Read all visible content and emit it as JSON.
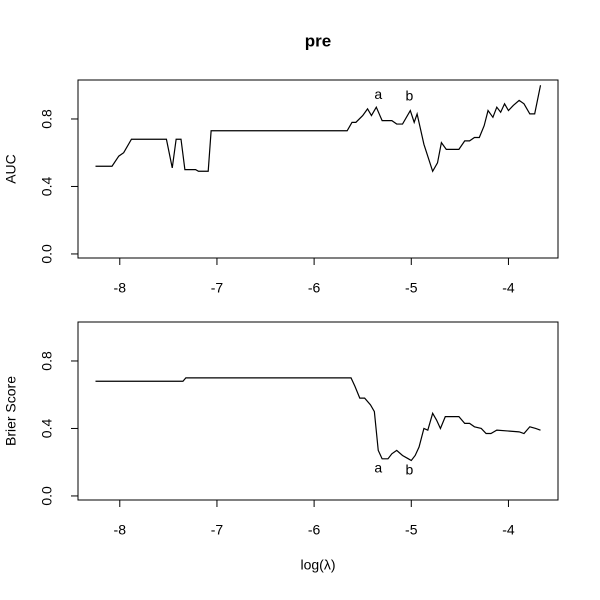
{
  "chart_data": [
    {
      "type": "line",
      "title": "pre",
      "y_label": "AUC",
      "color": "#000000",
      "x": [
        -8.25,
        -8.08,
        -8.01,
        -7.96,
        -7.88,
        -7.52,
        -7.46,
        -7.42,
        -7.37,
        -7.33,
        -7.22,
        -7.19,
        -7.09,
        -7.06,
        -5.66,
        -5.61,
        -5.57,
        -5.5,
        -5.45,
        -5.41,
        -5.36,
        -5.3,
        -5.2,
        -5.15,
        -5.09,
        -5.01,
        -4.97,
        -4.94,
        -4.87,
        -4.78,
        -4.73,
        -4.69,
        -4.64,
        -4.51,
        -4.45,
        -4.4,
        -4.35,
        -4.3,
        -4.25,
        -4.21,
        -4.16,
        -4.12,
        -4.08,
        -4.04,
        -4.0,
        -3.95,
        -3.89,
        -3.84,
        -3.78,
        -3.73,
        -3.67
      ],
      "values": [
        0.52,
        0.52,
        0.58,
        0.6,
        0.68,
        0.68,
        0.51,
        0.68,
        0.68,
        0.5,
        0.5,
        0.49,
        0.49,
        0.73,
        0.73,
        0.78,
        0.78,
        0.82,
        0.86,
        0.82,
        0.87,
        0.79,
        0.79,
        0.77,
        0.77,
        0.85,
        0.78,
        0.83,
        0.65,
        0.49,
        0.54,
        0.66,
        0.62,
        0.62,
        0.67,
        0.67,
        0.69,
        0.69,
        0.76,
        0.85,
        0.81,
        0.87,
        0.84,
        0.89,
        0.85,
        0.88,
        0.91,
        0.89,
        0.83,
        0.83,
        1.0
      ],
      "annotations": [
        {
          "text": "a",
          "x": -5.34,
          "y": 0.94
        },
        {
          "text": "b",
          "x": -5.02,
          "y": 0.93
        }
      ],
      "xlim": [
        -8.43,
        -3.49
      ],
      "ylim": [
        -0.024,
        1.031
      ],
      "xticks": [
        -8,
        -7,
        -6,
        -5,
        -4
      ],
      "yticks": [
        {
          "value": 0,
          "label": "0.0"
        },
        0.4,
        0.8
      ]
    },
    {
      "type": "line",
      "y_label": "Brier Score",
      "x_label": "log(λ)",
      "color": "#000000",
      "x": [
        -8.25,
        -7.35,
        -7.32,
        -5.62,
        -5.58,
        -5.53,
        -5.48,
        -5.42,
        -5.38,
        -5.34,
        -5.3,
        -5.24,
        -5.2,
        -5.15,
        -5.09,
        -5.03,
        -5.0,
        -4.96,
        -4.92,
        -4.87,
        -4.83,
        -4.78,
        -4.74,
        -4.7,
        -4.65,
        -4.51,
        -4.45,
        -4.4,
        -4.35,
        -4.28,
        -4.23,
        -4.18,
        -4.12,
        -3.89,
        -3.84,
        -3.78,
        -3.72,
        -3.67
      ],
      "values": [
        0.68,
        0.68,
        0.7,
        0.7,
        0.65,
        0.58,
        0.58,
        0.54,
        0.5,
        0.27,
        0.22,
        0.22,
        0.25,
        0.27,
        0.24,
        0.22,
        0.21,
        0.24,
        0.29,
        0.4,
        0.39,
        0.49,
        0.45,
        0.4,
        0.47,
        0.47,
        0.43,
        0.43,
        0.41,
        0.4,
        0.37,
        0.37,
        0.39,
        0.38,
        0.37,
        0.41,
        0.4,
        0.39
      ],
      "annotations": [
        {
          "text": "a",
          "x": -5.34,
          "y": 0.16
        },
        {
          "text": "b",
          "x": -5.02,
          "y": 0.15
        }
      ],
      "xlim": [
        -8.43,
        -3.49
      ],
      "ylim": [
        -0.024,
        1.031
      ],
      "xticks": [
        -8,
        -7,
        -6,
        -5,
        -4
      ],
      "yticks": [
        {
          "value": 0,
          "label": "0.0"
        },
        0.4,
        0.8
      ]
    }
  ]
}
